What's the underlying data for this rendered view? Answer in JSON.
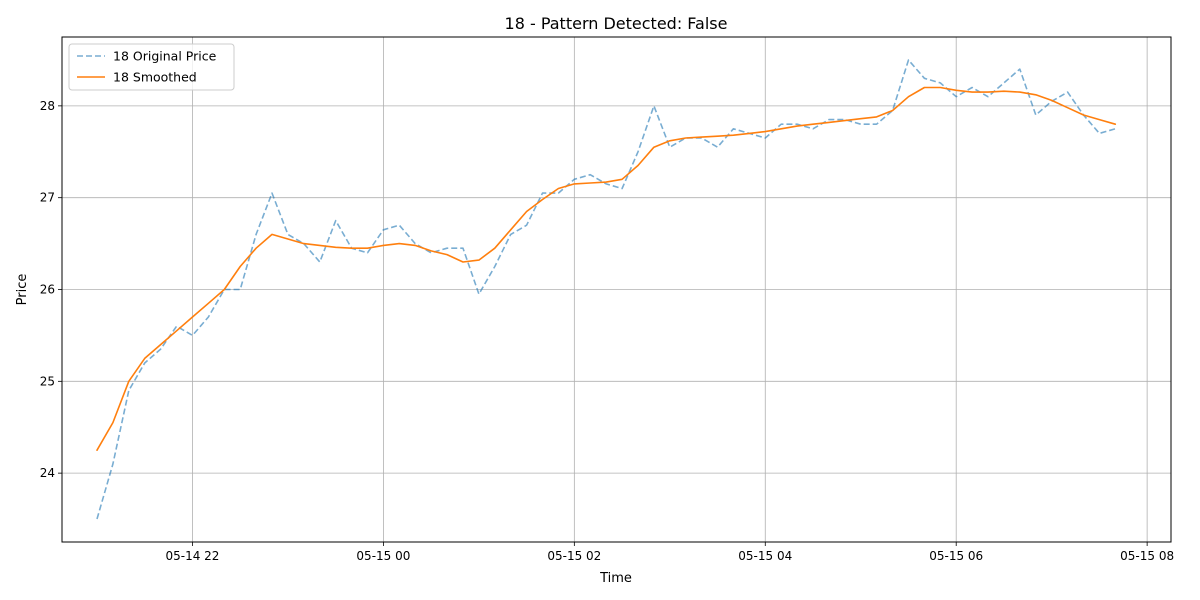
{
  "chart_data": {
    "type": "line",
    "title": "18 - Pattern Detected: False",
    "xlabel": "Time",
    "ylabel": "Price",
    "xlim": [
      "2025-05-14T20:38",
      "2025-05-15T08:15"
    ],
    "ylim": [
      23.25,
      28.75
    ],
    "grid": true,
    "legend_position": "top-left",
    "x_ticks": [
      "05-14 22",
      "05-15 00",
      "05-15 02",
      "05-15 04",
      "05-15 06",
      "05-15 08"
    ],
    "y_ticks": [
      "24",
      "25",
      "26",
      "27",
      "28"
    ],
    "x": [
      "2025-05-14T21:00",
      "2025-05-14T21:10",
      "2025-05-14T21:20",
      "2025-05-14T21:30",
      "2025-05-14T21:40",
      "2025-05-14T21:50",
      "2025-05-14T22:00",
      "2025-05-14T22:10",
      "2025-05-14T22:20",
      "2025-05-14T22:30",
      "2025-05-14T22:40",
      "2025-05-14T22:50",
      "2025-05-14T23:00",
      "2025-05-14T23:10",
      "2025-05-14T23:20",
      "2025-05-14T23:30",
      "2025-05-14T23:40",
      "2025-05-14T23:50",
      "2025-05-15T00:00",
      "2025-05-15T00:10",
      "2025-05-15T00:20",
      "2025-05-15T00:30",
      "2025-05-15T00:40",
      "2025-05-15T00:50",
      "2025-05-15T01:00",
      "2025-05-15T01:10",
      "2025-05-15T01:20",
      "2025-05-15T01:30",
      "2025-05-15T01:40",
      "2025-05-15T01:50",
      "2025-05-15T02:00",
      "2025-05-15T02:10",
      "2025-05-15T02:20",
      "2025-05-15T02:30",
      "2025-05-15T02:40",
      "2025-05-15T02:50",
      "2025-05-15T03:00",
      "2025-05-15T03:10",
      "2025-05-15T03:20",
      "2025-05-15T03:30",
      "2025-05-15T03:40",
      "2025-05-15T03:50",
      "2025-05-15T04:00",
      "2025-05-15T04:10",
      "2025-05-15T04:20",
      "2025-05-15T04:30",
      "2025-05-15T04:40",
      "2025-05-15T04:50",
      "2025-05-15T05:00",
      "2025-05-15T05:10",
      "2025-05-15T05:20",
      "2025-05-15T05:30",
      "2025-05-15T05:40",
      "2025-05-15T05:50",
      "2025-05-15T06:00",
      "2025-05-15T06:10",
      "2025-05-15T06:20",
      "2025-05-15T06:30",
      "2025-05-15T06:40",
      "2025-05-15T06:50",
      "2025-05-15T07:00",
      "2025-05-15T07:10",
      "2025-05-15T07:20",
      "2025-05-15T07:30",
      "2025-05-15T07:40"
    ],
    "series": [
      {
        "name": "18 Original Price",
        "style": "dashed",
        "color": "#1f77b4",
        "values": [
          23.5,
          24.1,
          24.9,
          25.2,
          25.35,
          25.6,
          25.5,
          25.7,
          26.0,
          26.0,
          26.6,
          27.05,
          26.6,
          26.5,
          26.3,
          26.75,
          26.45,
          26.4,
          26.65,
          26.7,
          26.5,
          26.4,
          26.45,
          26.45,
          25.95,
          26.25,
          26.6,
          26.7,
          27.05,
          27.05,
          27.2,
          27.25,
          27.15,
          27.1,
          27.5,
          28.0,
          27.55,
          27.65,
          27.65,
          27.55,
          27.75,
          27.7,
          27.65,
          27.8,
          27.8,
          27.75,
          27.85,
          27.85,
          27.8,
          27.8,
          27.95,
          28.5,
          28.3,
          28.25,
          28.1,
          28.2,
          28.1,
          28.25,
          28.4,
          27.9,
          28.05,
          28.15,
          27.9,
          27.7,
          27.75
        ]
      },
      {
        "name": "18 Smoothed",
        "style": "solid",
        "color": "#ff7f0e",
        "values": [
          24.25,
          24.55,
          25.0,
          25.25,
          25.4,
          25.55,
          25.7,
          25.85,
          26.0,
          26.25,
          26.45,
          26.6,
          26.55,
          26.5,
          26.48,
          26.46,
          26.45,
          26.45,
          26.48,
          26.5,
          26.48,
          26.42,
          26.38,
          26.3,
          26.32,
          26.45,
          26.65,
          26.85,
          26.98,
          27.1,
          27.15,
          27.16,
          27.17,
          27.2,
          27.35,
          27.55,
          27.62,
          27.65,
          27.66,
          27.67,
          27.68,
          27.7,
          27.72,
          27.75,
          27.78,
          27.8,
          27.82,
          27.84,
          27.86,
          27.88,
          27.95,
          28.1,
          28.2,
          28.2,
          28.17,
          28.15,
          28.15,
          28.16,
          28.15,
          28.12,
          28.06,
          27.98,
          27.9,
          27.85,
          27.8
        ]
      }
    ]
  }
}
